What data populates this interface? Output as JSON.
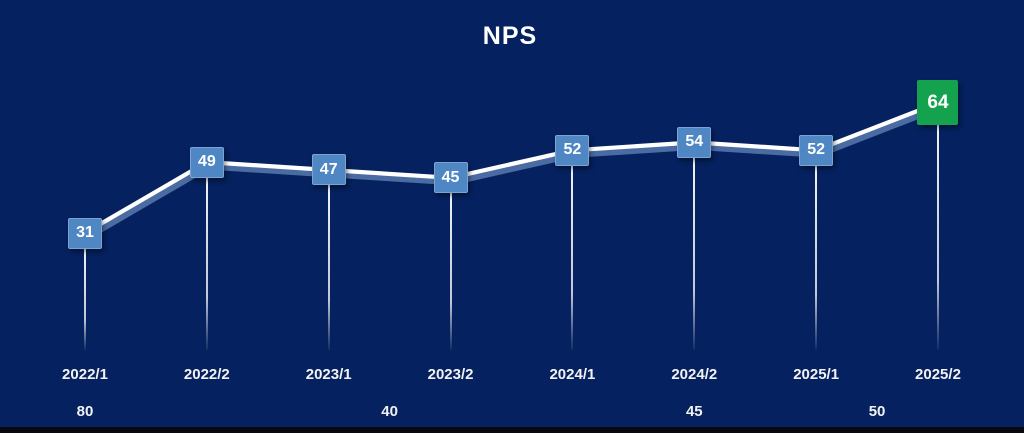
{
  "chart_data": {
    "type": "line",
    "title": "NPS",
    "categories": [
      "2022/1",
      "2022/2",
      "2023/1",
      "2023/2",
      "2024/1",
      "2024/2",
      "2025/1",
      "2025/2"
    ],
    "series": [
      {
        "name": "NPS",
        "values": [
          31,
          49,
          47,
          45,
          52,
          54,
          52,
          64
        ]
      }
    ],
    "data_labels_shown": true,
    "highlight_last_index": 7,
    "bottom_axis_row": [
      {
        "text": "80",
        "cat_pos": 0
      },
      {
        "text": "40",
        "cat_pos": 2.5
      },
      {
        "text": "45",
        "cat_pos": 5
      },
      {
        "text": "50",
        "cat_pos": 6.5
      }
    ],
    "grid": "off",
    "y_axis_shown": false,
    "legend": "none"
  },
  "colors": {
    "background": "#05215f",
    "marker_blue": "#4f86c4",
    "marker_green": "#14a24e",
    "line": "#ffffff",
    "line_glow": "#8fb7e6",
    "text": "#ffffff",
    "bottom_strip": "#08080f"
  }
}
